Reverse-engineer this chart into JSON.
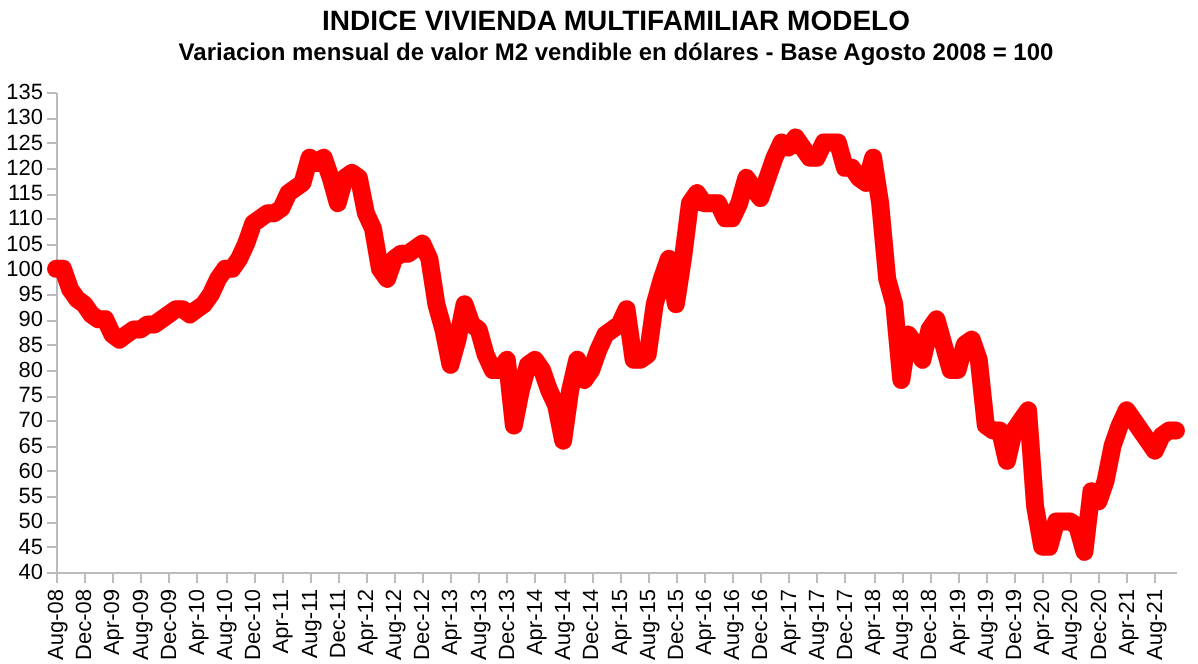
{
  "chart_data": {
    "type": "line",
    "title": "INDICE VIVIENDA MULTIFAMILIAR MODELO",
    "subtitle": "Variacion mensual de valor M2 vendible en dólares - Base Agosto 2008  = 100",
    "categories": [
      "Aug-08",
      null,
      null,
      null,
      "Dec-08",
      null,
      null,
      null,
      "Apr-09",
      null,
      null,
      null,
      "Aug-09",
      null,
      null,
      null,
      "Dec-09",
      null,
      null,
      null,
      "Apr-10",
      null,
      null,
      null,
      "Aug-10",
      null,
      null,
      null,
      "Dec-10",
      null,
      null,
      null,
      "Apr-11",
      null,
      null,
      null,
      "Aug-11",
      null,
      null,
      null,
      "Dec-11",
      null,
      null,
      null,
      "Apr-12",
      null,
      null,
      null,
      "Aug-12",
      null,
      null,
      null,
      "Dec-12",
      null,
      null,
      null,
      "Apr-13",
      null,
      null,
      null,
      "Aug-13",
      null,
      null,
      null,
      "Dec-13",
      null,
      null,
      null,
      "Apr-14",
      null,
      null,
      null,
      "Aug-14",
      null,
      null,
      null,
      "Dec-14",
      null,
      null,
      null,
      "Apr-15",
      null,
      null,
      null,
      "Aug-15",
      null,
      null,
      null,
      "Dec-15",
      null,
      null,
      null,
      "Apr-16",
      null,
      null,
      null,
      "Aug-16",
      null,
      null,
      null,
      "Dec-16",
      null,
      null,
      null,
      "Apr-17",
      null,
      null,
      null,
      "Aug-17",
      null,
      null,
      null,
      "Dec-17",
      null,
      null,
      null,
      "Apr-18",
      null,
      null,
      null,
      "Aug-18",
      null,
      null,
      null,
      "Dec-18",
      null,
      null,
      null,
      "Apr-19",
      null,
      null,
      null,
      "Aug-19",
      null,
      null,
      null,
      "Dec-19",
      null,
      null,
      null,
      "Apr-20",
      null,
      null,
      null,
      "Aug-20",
      null,
      null,
      null,
      "Dec-20",
      null,
      null,
      null,
      "Apr-21",
      null,
      null,
      null,
      "Aug-21",
      null,
      null,
      null
    ],
    "series": [
      {
        "color": "#ff0000",
        "values": [
          100,
          100,
          96,
          94,
          93,
          91,
          90,
          90,
          87,
          86,
          87,
          88,
          88,
          89,
          89,
          90,
          91,
          92,
          92,
          91,
          92,
          93,
          95,
          98,
          100,
          100,
          102,
          105,
          109,
          110,
          111,
          111,
          112,
          115,
          116,
          117,
          122,
          121,
          122,
          118,
          113,
          118,
          119,
          118,
          111,
          108,
          100,
          98,
          102,
          103,
          103,
          104,
          105,
          102,
          93,
          88,
          81,
          86,
          93,
          89,
          88,
          83,
          80,
          80,
          82,
          69,
          76,
          81,
          82,
          80,
          76,
          73,
          66,
          76,
          82,
          78,
          80,
          84,
          87,
          88,
          89,
          92,
          82,
          82,
          83,
          93,
          98,
          102,
          93,
          102,
          113,
          115,
          113,
          113,
          113,
          110,
          110,
          113,
          118,
          116,
          114,
          118,
          122,
          125,
          124,
          126,
          124,
          122,
          122,
          125,
          125,
          125,
          120,
          120,
          118,
          117,
          122,
          113,
          98,
          93,
          78,
          87,
          85,
          82,
          88,
          90,
          85,
          80,
          80,
          85,
          86,
          82,
          69,
          68,
          68,
          62,
          68,
          70,
          72,
          53,
          45,
          45,
          50,
          50,
          50,
          49,
          44,
          56,
          54,
          58,
          65,
          69,
          72,
          70,
          68,
          66,
          64,
          67,
          68,
          68
        ]
      }
    ],
    "ylim": [
      40,
      135
    ],
    "yticks": [
      40,
      45,
      50,
      55,
      60,
      65,
      70,
      75,
      80,
      85,
      90,
      95,
      100,
      105,
      110,
      115,
      120,
      125,
      130,
      135
    ],
    "grid": false,
    "line_style": "solid"
  }
}
